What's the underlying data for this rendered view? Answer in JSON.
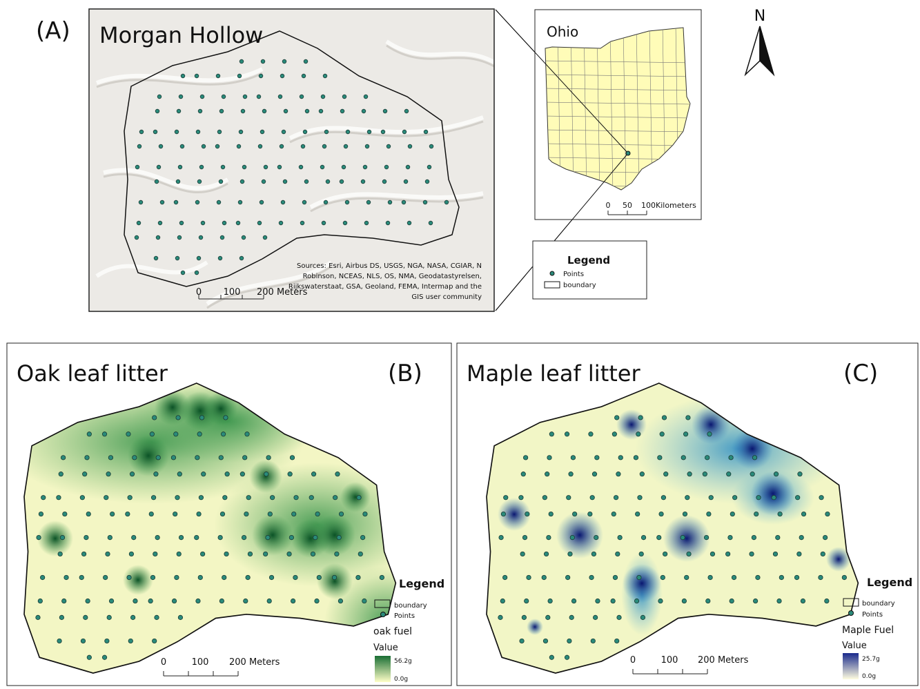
{
  "panel_a": {
    "label": "(A)",
    "title": "Morgan Hollow",
    "sources": [
      "Sources: Esri, Airbus DS, USGS, NGA, NASA, CGIAR, N",
      "Robinson, NCEAS, NLS, OS, NMA, Geodatastyrelsen,",
      "Rijkswaterstaat, GSA, Geoland, FEMA, Intermap and the",
      "GIS user community"
    ],
    "scale": [
      "0",
      "100",
      "200 Meters"
    ]
  },
  "inset": {
    "title": "Ohio",
    "scale": [
      "0",
      "50",
      "100Kilometers"
    ]
  },
  "north": "N",
  "legend_a": {
    "title": "Legend",
    "items": [
      "Points",
      "boundary"
    ]
  },
  "panel_b": {
    "title": "Oak leaf litter",
    "label": "(B)",
    "legend_title": "Legend",
    "items": [
      "boundary",
      "Points"
    ],
    "field": "oak fuel",
    "value_heading": "Value",
    "high": "56.2g",
    "low": "0.0g",
    "scale": [
      "0",
      "100",
      "200 Meters"
    ]
  },
  "panel_c": {
    "title": "Maple leaf litter",
    "label": "(C)",
    "legend_title": "Legend",
    "items": [
      "boundary",
      "Points"
    ],
    "field": "Maple Fuel",
    "value_heading": "Value",
    "high": "25.7g",
    "low": "0.0g",
    "scale": [
      "0",
      "100",
      "200 Meters"
    ]
  }
}
